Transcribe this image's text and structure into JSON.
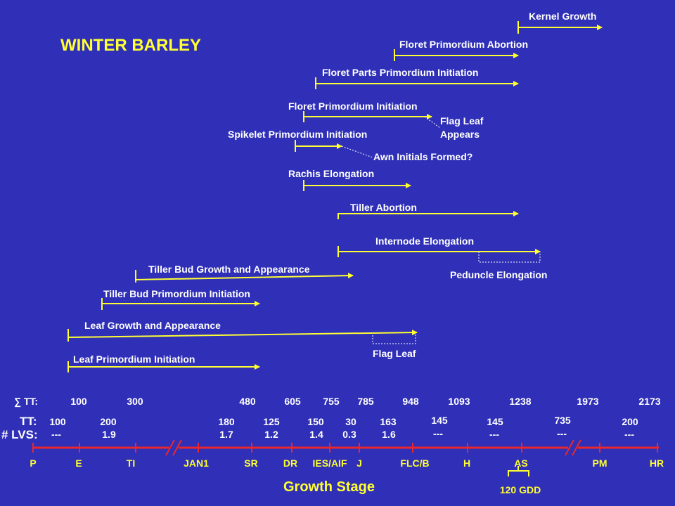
{
  "title": "WINTER BARLEY",
  "phases": {
    "kernel_growth": "Kernel Growth",
    "floret_primordium_abortion": "Floret Primordium Abortion",
    "floret_parts_primordium_initiation": "Floret Parts Primordium Initiation",
    "floret_primordium_initiation": "Floret Primordium Initiation",
    "flag_leaf_appears_line1": "Flag Leaf",
    "flag_leaf_appears_line2": "Appears",
    "spikelet_primordium_initiation": "Spikelet Primordium Initiation",
    "awn_initials_formed": "Awn Initials Formed?",
    "rachis_elongation": "Rachis Elongation",
    "tiller_abortion": "Tiller Abortion",
    "internode_elongation": "Internode Elongation",
    "peduncle_elongation": "Peduncle Elongation",
    "tiller_bud_growth": "Tiller Bud Growth and Appearance",
    "tiller_bud_primordium_initiation": "Tiller Bud Primordium Initiation",
    "leaf_growth": "Leaf Growth and Appearance",
    "flag_leaf": "Flag Leaf",
    "leaf_primordium_initiation": "Leaf Primordium Initiation"
  },
  "table": {
    "sum_tt_label": "∑ TT:",
    "sum_tt": [
      "100",
      "300",
      "480",
      "605",
      "755",
      "785",
      "948",
      "1093",
      "1238",
      "1973",
      "2173"
    ],
    "tt_label": "TT:",
    "tt": [
      "100",
      "200",
      "180",
      "125",
      "150",
      "30",
      "163",
      "145",
      "145",
      "735",
      "200"
    ],
    "lvs_label": "# LVS:",
    "lvs": [
      "---",
      "1.9",
      "1.7",
      "1.2",
      "1.4",
      "0.3",
      "1.6",
      "---",
      "---",
      "---",
      "---"
    ]
  },
  "stages": [
    "P",
    "E",
    "TI",
    "JAN1",
    "SR",
    "DR",
    "IES/AIF",
    "J",
    "FLC/B",
    "H",
    "AS",
    "PM",
    "HR"
  ],
  "gdd_label": "120 GDD",
  "axis_title": "Growth Stage",
  "colors": {
    "background": "#2f2fb8",
    "arrow": "#ffff33",
    "axis": "#e8282d"
  }
}
